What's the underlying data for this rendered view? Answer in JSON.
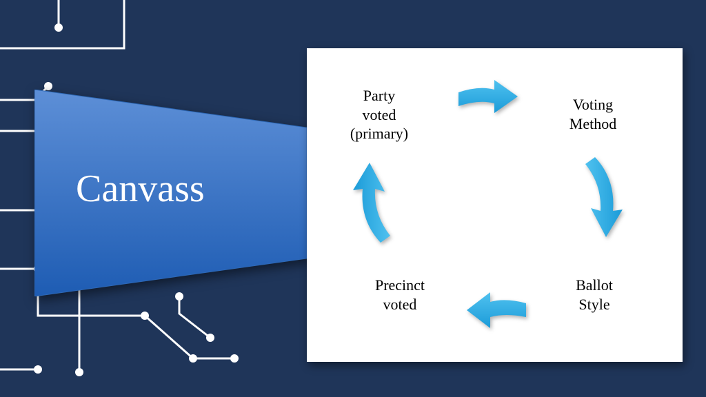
{
  "background_color": "#1f3559",
  "circuit_line_color": "#ffffff",
  "circuit_line_width": 3,
  "circuit_node_radius": 6,
  "title": {
    "text": "Canvass",
    "text_color": "#ffffff",
    "font_size": 56,
    "shape_fill_top": "#5d8fd7",
    "shape_fill_bottom": "#1e5cb3",
    "shape_stroke": "#2d68b6"
  },
  "cycle_panel": {
    "background": "#ffffff",
    "arrow_color": "#2ea7e0",
    "label_color": "#000000",
    "label_font_size": 22,
    "nodes": [
      {
        "id": "party-voted",
        "label": "Party\nvoted\n(primary)"
      },
      {
        "id": "voting-method",
        "label": "Voting\nMethod"
      },
      {
        "id": "ballot-style",
        "label": "Ballot\nStyle"
      },
      {
        "id": "precinct-voted",
        "label": "Precinct\nvoted"
      }
    ]
  }
}
